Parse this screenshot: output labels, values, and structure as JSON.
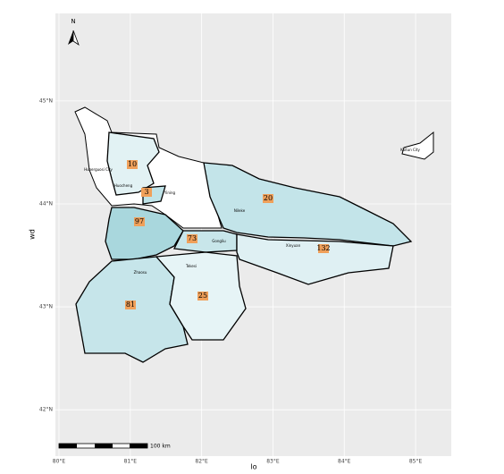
{
  "map": {
    "x_label": "lo",
    "y_label": "wd",
    "xlim": [
      79.95,
      85.5
    ],
    "ylim": [
      41.55,
      45.85
    ],
    "xticks": [
      {
        "value": 80,
        "label": "80°E"
      },
      {
        "value": 81,
        "label": "81°E"
      },
      {
        "value": 82,
        "label": "82°E"
      },
      {
        "value": 83,
        "label": "83°E"
      },
      {
        "value": 84,
        "label": "84°E"
      },
      {
        "value": 85,
        "label": "85°E"
      }
    ],
    "yticks": [
      {
        "value": 42,
        "label": "42°N"
      },
      {
        "value": 43,
        "label": "43°N"
      },
      {
        "value": 44,
        "label": "44°N"
      },
      {
        "value": 45,
        "label": "45°N"
      }
    ],
    "north": "N",
    "scale_bar": "100 km",
    "places": [
      "Huoerguosi City",
      "Kuitun City"
    ],
    "regions": [
      {
        "label": "Huocheng",
        "value": 10,
        "color": "#e2f2f4"
      },
      {
        "label": "Yining",
        "value": 3,
        "color": "#bfe3e8"
      },
      {
        "label": "Nileke",
        "value": 20,
        "color": "#c3e4e9"
      },
      {
        "label": null,
        "value": 97,
        "color": "#a9d7dd"
      },
      {
        "label": "Gongliu",
        "value": 73,
        "color": "#c8e6ea"
      },
      {
        "label": "Xinyuan",
        "value": 132,
        "color": "#dff0f3"
      },
      {
        "label": "Zhaosu",
        "value": 81,
        "color": "#c6e5ea"
      },
      {
        "label": "Tekesi",
        "value": 25,
        "color": "#e6f4f6"
      }
    ]
  }
}
